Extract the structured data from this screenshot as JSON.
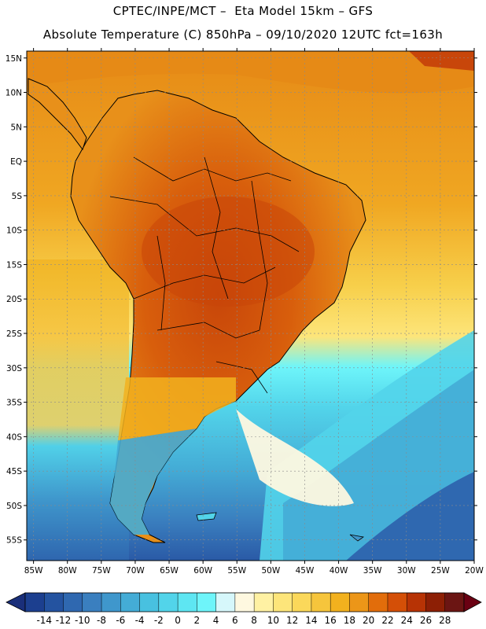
{
  "header": {
    "line1": "CPTEC/INPE/MCT –  Eta Model 15km – GFS",
    "line2": "Absolute Temperature (C) 850hPa – 09/10/2020 12UTC fct=163h"
  },
  "axes": {
    "lat_labels": [
      "15N",
      "10N",
      "5N",
      "EQ",
      "5S",
      "10S",
      "15S",
      "20S",
      "25S",
      "30S",
      "35S",
      "40S",
      "45S",
      "50S",
      "55S"
    ],
    "lat_values": [
      15,
      10,
      5,
      0,
      -5,
      -10,
      -15,
      -20,
      -25,
      -30,
      -35,
      -40,
      -45,
      -50,
      -55
    ],
    "lon_labels": [
      "85W",
      "80W",
      "75W",
      "70W",
      "65W",
      "60W",
      "55W",
      "50W",
      "45W",
      "40W",
      "35W",
      "30W",
      "25W",
      "20W"
    ],
    "lon_values": [
      -85,
      -80,
      -75,
      -70,
      -65,
      -60,
      -55,
      -50,
      -45,
      -40,
      -35,
      -30,
      -25,
      -20
    ],
    "lon_range": [
      -86,
      -20
    ],
    "lat_range": [
      -58,
      16
    ]
  },
  "colorbar": {
    "labels": [
      "-14",
      "-12",
      "-10",
      "-8",
      "-6",
      "-4",
      "-2",
      "0",
      "2",
      "4",
      "6",
      "8",
      "10",
      "12",
      "14",
      "16",
      "18",
      "20",
      "22",
      "24",
      "26",
      "28"
    ],
    "colors": [
      "#1c3f8f",
      "#2453a0",
      "#2f68b0",
      "#3a7fbf",
      "#3f97cc",
      "#44acd6",
      "#48c1e0",
      "#52d4ea",
      "#5ee6f2",
      "#6ef5fa",
      "#d6f7fb",
      "#fef8e0",
      "#fff1a3",
      "#fde57a",
      "#fbd85a",
      "#f6c53c",
      "#f2b11e",
      "#ec9618",
      "#e26d0b",
      "#d44f07",
      "#b73305",
      "#8d1f05",
      "#6b1513"
    ],
    "min_arrow_color": "#1a2f7a",
    "max_arrow_color": "#6a0012"
  },
  "colors": {
    "ocean_north": "#e89419",
    "ocean_mid": "#f4c543",
    "ocean_south_cold": "#52d4ea",
    "ocean_far_south": "#2f68b0",
    "land_hot": "#d85a0b",
    "land_warm": "#ea9517",
    "coast": "#000000",
    "grid": "#8a8a8a"
  }
}
